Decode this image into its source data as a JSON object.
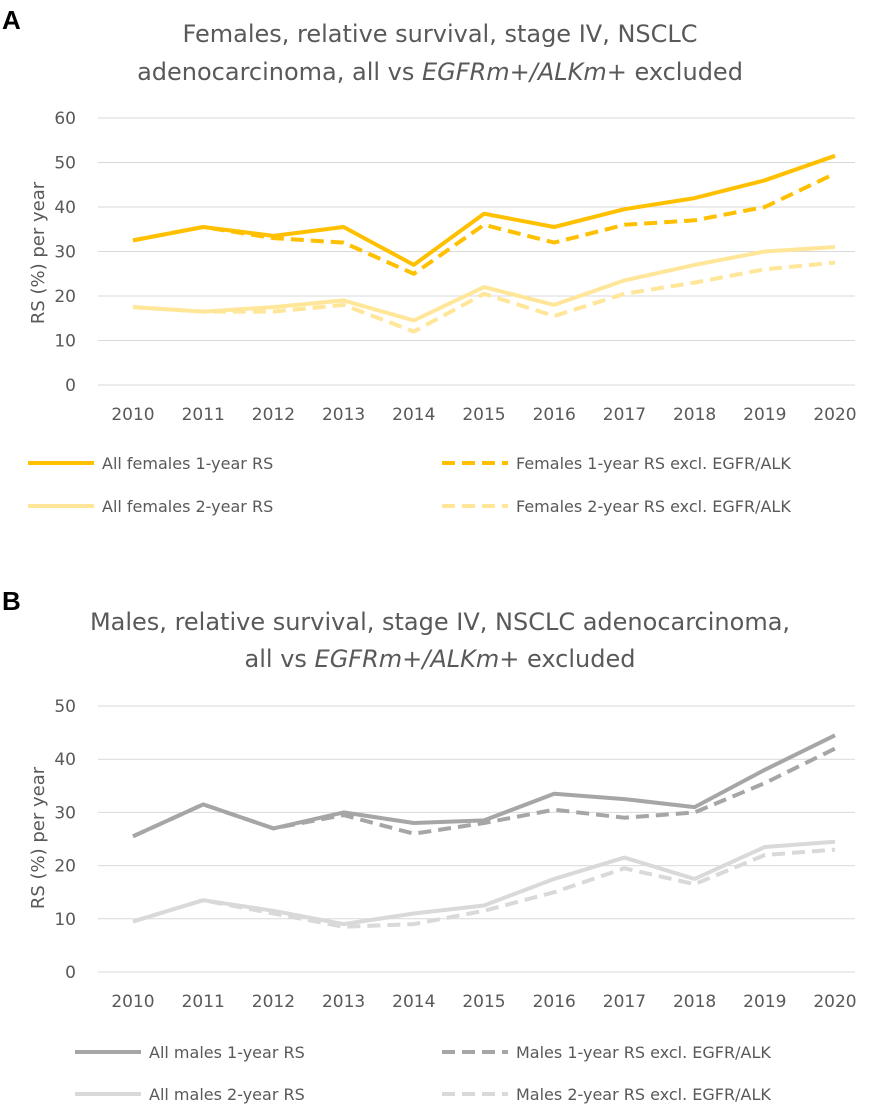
{
  "chart_data": [
    {
      "panel": "A",
      "type": "line",
      "title_line1": "Females, relative survival, stage IV, NSCLC",
      "title_line2_prefix": "adenocarcinoma, all vs ",
      "title_line2_italic": "EGFRm+/ALKm+",
      "title_line2_suffix": " excluded",
      "xlabel": "",
      "ylabel": "RS (%) per year",
      "ylim": [
        0,
        60
      ],
      "yticks": [
        0,
        10,
        20,
        30,
        40,
        50,
        60
      ],
      "categories": [
        "2010",
        "2011",
        "2012",
        "2013",
        "2014",
        "2015",
        "2016",
        "2017",
        "2018",
        "2019",
        "2020"
      ],
      "series": [
        {
          "name": "All females 1-year RS",
          "color": "#ffc000",
          "dashed": false,
          "values": [
            32.5,
            35.5,
            33.5,
            35.5,
            27,
            38.5,
            35.5,
            39.5,
            42,
            46,
            51.5
          ]
        },
        {
          "name": "Females 1-year RS excl. EGFR/ALK",
          "color": "#ffc000",
          "dashed": true,
          "values": [
            32.5,
            35.5,
            33,
            32,
            25,
            36,
            32,
            36,
            37,
            40,
            47.5
          ]
        },
        {
          "name": "All females 2-year RS",
          "color": "#ffe699",
          "dashed": false,
          "values": [
            17.5,
            16.5,
            17.5,
            19,
            14.5,
            22,
            18,
            23.5,
            27,
            30,
            31
          ]
        },
        {
          "name": "Females 2-year RS excl. EGFR/ALK",
          "color": "#ffe699",
          "dashed": true,
          "values": [
            17.5,
            16.5,
            16.5,
            18,
            12,
            20.5,
            15.5,
            20.5,
            23,
            26,
            27.5
          ]
        }
      ]
    },
    {
      "panel": "B",
      "type": "line",
      "title_line1": "Males, relative survival, stage IV, NSCLC adenocarcinoma,",
      "title_line2_prefix": "all vs ",
      "title_line2_italic": "EGFRm+/ALKm+",
      "title_line2_suffix": " excluded",
      "xlabel": "",
      "ylabel": "RS (%) per year",
      "ylim": [
        0,
        50
      ],
      "yticks": [
        0,
        10,
        20,
        30,
        40,
        50
      ],
      "categories": [
        "2010",
        "2011",
        "2012",
        "2013",
        "2014",
        "2015",
        "2016",
        "2017",
        "2018",
        "2019",
        "2020"
      ],
      "series": [
        {
          "name": "All males 1-year RS",
          "color": "#a6a6a6",
          "dashed": false,
          "values": [
            25.5,
            31.5,
            27,
            30,
            28,
            28.5,
            33.5,
            32.5,
            31,
            38,
            44.5
          ]
        },
        {
          "name": "Males 1-year RS excl. EGFR/ALK",
          "color": "#a6a6a6",
          "dashed": true,
          "values": [
            25.5,
            31.5,
            27,
            29.5,
            26,
            28,
            30.5,
            29,
            30,
            35.5,
            42
          ]
        },
        {
          "name": "All males 2-year RS",
          "color": "#d9d9d9",
          "dashed": false,
          "values": [
            9.5,
            13.5,
            11.5,
            9,
            11,
            12.5,
            17.5,
            21.5,
            17.5,
            23.5,
            24.5
          ]
        },
        {
          "name": "Males 2-year RS excl. EGFR/ALK",
          "color": "#d9d9d9",
          "dashed": true,
          "values": [
            9.5,
            13.5,
            11,
            8.5,
            9,
            11.5,
            15,
            19.5,
            16.5,
            22,
            23
          ]
        }
      ]
    }
  ]
}
